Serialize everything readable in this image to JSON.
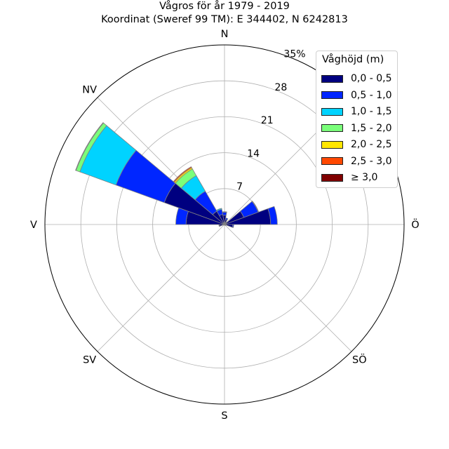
{
  "title": "Vågros för år 1979 - 2019",
  "subtitle": "Koordinat (Sweref 99 TM): E 344402, N 6242813",
  "chart_data": {
    "type": "wind-rose (stacked polar bar)",
    "radial_unit": "%",
    "rmax": 35,
    "radial_ticks": [
      "7",
      "14",
      "21",
      "28",
      "35%"
    ],
    "radial_tick_values": [
      7,
      14,
      21,
      28,
      35
    ],
    "direction_labels": [
      "N",
      "NÖ",
      "Ö",
      "SÖ",
      "S",
      "SV",
      "V",
      "NV"
    ],
    "direction_angles": [
      0,
      45,
      90,
      135,
      180,
      225,
      270,
      315
    ],
    "sector_width_deg": 20,
    "legend_title": "Våghöjd (m)",
    "legend_placement": "top-right",
    "classes": [
      {
        "name": "0,0 - 0,5",
        "color": "#000080"
      },
      {
        "name": "0,5 - 1,0",
        "color": "#0026ff"
      },
      {
        "name": "1,0 - 1,5",
        "color": "#00d3ff"
      },
      {
        "name": "1,5 - 2,0",
        "color": "#7aff7a"
      },
      {
        "name": "2,0 - 2,5",
        "color": "#ffe600"
      },
      {
        "name": "2,5 - 3,0",
        "color": "#ff4800"
      },
      {
        "name": "≥ 3,0",
        "color": "#800000"
      }
    ],
    "sectors": [
      {
        "direction": 0,
        "values": [
          1.8,
          0.6,
          0.1,
          0,
          0,
          0,
          0
        ]
      },
      {
        "direction": 20,
        "values": [
          1.0,
          0.3,
          0,
          0,
          0,
          0,
          0
        ]
      },
      {
        "direction": 40,
        "values": [
          0.5,
          0.1,
          0,
          0,
          0,
          0,
          0
        ]
      },
      {
        "direction": 60,
        "values": [
          4.0,
          3.0,
          0.1,
          0,
          0,
          0,
          0
        ]
      },
      {
        "direction": 80,
        "values": [
          9.0,
          1.3,
          0,
          0,
          0,
          0,
          0
        ]
      },
      {
        "direction": 100,
        "values": [
          1.6,
          0.2,
          0,
          0,
          0,
          0,
          0
        ]
      },
      {
        "direction": 120,
        "values": [
          0.3,
          0,
          0,
          0,
          0,
          0,
          0
        ]
      },
      {
        "direction": 140,
        "values": [
          0.2,
          0,
          0,
          0,
          0,
          0,
          0
        ]
      },
      {
        "direction": 160,
        "values": [
          0.1,
          0,
          0,
          0,
          0,
          0,
          0
        ]
      },
      {
        "direction": 180,
        "values": [
          0.1,
          0,
          0,
          0,
          0,
          0,
          0
        ]
      },
      {
        "direction": 200,
        "values": [
          0.1,
          0,
          0,
          0,
          0,
          0,
          0
        ]
      },
      {
        "direction": 220,
        "values": [
          0.1,
          0,
          0,
          0,
          0,
          0,
          0
        ]
      },
      {
        "direction": 240,
        "values": [
          0.2,
          0,
          0,
          0,
          0,
          0,
          0
        ]
      },
      {
        "direction": 260,
        "values": [
          1.0,
          0.1,
          0,
          0,
          0,
          0,
          0
        ]
      },
      {
        "direction": 280,
        "values": [
          7.5,
          2.0,
          0,
          0,
          0,
          0,
          0
        ]
      },
      {
        "direction": 300,
        "values": [
          12.5,
          10.0,
          7.5,
          0.8,
          0.1,
          0,
          0
        ]
      },
      {
        "direction": 320,
        "values": [
          3.0,
          4.5,
          3.5,
          1.5,
          0.3,
          0.2,
          0
        ]
      },
      {
        "direction": 340,
        "values": [
          2.0,
          1.0,
          0.2,
          0,
          0,
          0,
          0
        ]
      }
    ]
  }
}
